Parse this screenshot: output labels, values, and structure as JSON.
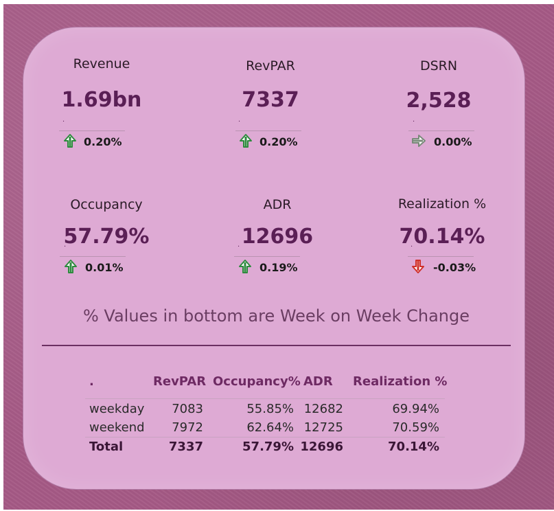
{
  "kpis": {
    "revenue": {
      "label": "Revenue",
      "value": "1.69bn",
      "change": "0.20%",
      "trend": "up"
    },
    "revpar": {
      "label": "RevPAR",
      "value": "7337",
      "change": "0.20%",
      "trend": "up"
    },
    "dsrn": {
      "label": "DSRN",
      "value": "2,528",
      "change": "0.00%",
      "trend": "flat"
    },
    "occupancy": {
      "label": "Occupancy",
      "value": "57.79%",
      "change": "0.01%",
      "trend": "up"
    },
    "adr": {
      "label": "ADR",
      "value": "12696",
      "change": "0.19%",
      "trend": "up"
    },
    "realization": {
      "label": "Realization %",
      "value": "70.14%",
      "change": "-0.03%",
      "trend": "down"
    }
  },
  "note": "% Values in bottom are Week on Week Change",
  "table": {
    "headers": [
      ".",
      "RevPAR",
      "Occupancy%",
      "ADR",
      "Realization %"
    ],
    "rows": [
      [
        "weekday",
        "7083",
        "55.85%",
        "12682",
        "69.94%"
      ],
      [
        "weekend",
        "7972",
        "62.64%",
        "12725",
        "70.59%"
      ]
    ],
    "total": [
      "Total",
      "7337",
      "57.79%",
      "12696",
      "70.14%"
    ]
  },
  "colors": {
    "up": "#2e8a3e",
    "down": "#d0302a",
    "flat": "#7a8a7a",
    "accent": "#5a1f55",
    "card": "#deaad4"
  }
}
